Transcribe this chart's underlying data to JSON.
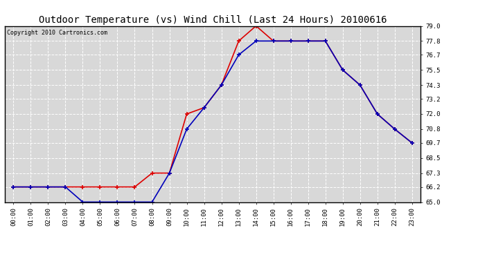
{
  "title": "Outdoor Temperature (vs) Wind Chill (Last 24 Hours) 20100616",
  "copyright": "Copyright 2010 Cartronics.com",
  "x_labels": [
    "00:00",
    "01:00",
    "02:00",
    "03:00",
    "04:00",
    "05:00",
    "06:00",
    "07:00",
    "08:00",
    "09:00",
    "10:00",
    "11:00",
    "12:00",
    "13:00",
    "14:00",
    "15:00",
    "16:00",
    "17:00",
    "18:00",
    "19:00",
    "20:00",
    "21:00",
    "22:00",
    "23:00"
  ],
  "temp_red": [
    66.2,
    66.2,
    66.2,
    66.2,
    66.2,
    66.2,
    66.2,
    66.2,
    67.3,
    67.3,
    72.0,
    72.5,
    74.3,
    77.8,
    79.0,
    77.8,
    77.8,
    77.8,
    77.8,
    75.5,
    74.3,
    72.0,
    70.8,
    69.7
  ],
  "wind_chill_blue": [
    66.2,
    66.2,
    66.2,
    66.2,
    65.0,
    65.0,
    65.0,
    65.0,
    65.0,
    67.3,
    70.8,
    72.5,
    74.3,
    76.7,
    77.8,
    77.8,
    77.8,
    77.8,
    77.8,
    75.5,
    74.3,
    72.0,
    70.8,
    69.7
  ],
  "y_ticks": [
    65.0,
    66.2,
    67.3,
    68.5,
    69.7,
    70.8,
    72.0,
    73.2,
    74.3,
    75.5,
    76.7,
    77.8,
    79.0
  ],
  "y_min": 65.0,
  "y_max": 79.0,
  "red_color": "#dd0000",
  "blue_color": "#0000bb",
  "bg_color": "#d8d8d8",
  "grid_color": "#ffffff",
  "title_fontsize": 10,
  "copyright_fontsize": 6,
  "tick_fontsize": 6.5
}
